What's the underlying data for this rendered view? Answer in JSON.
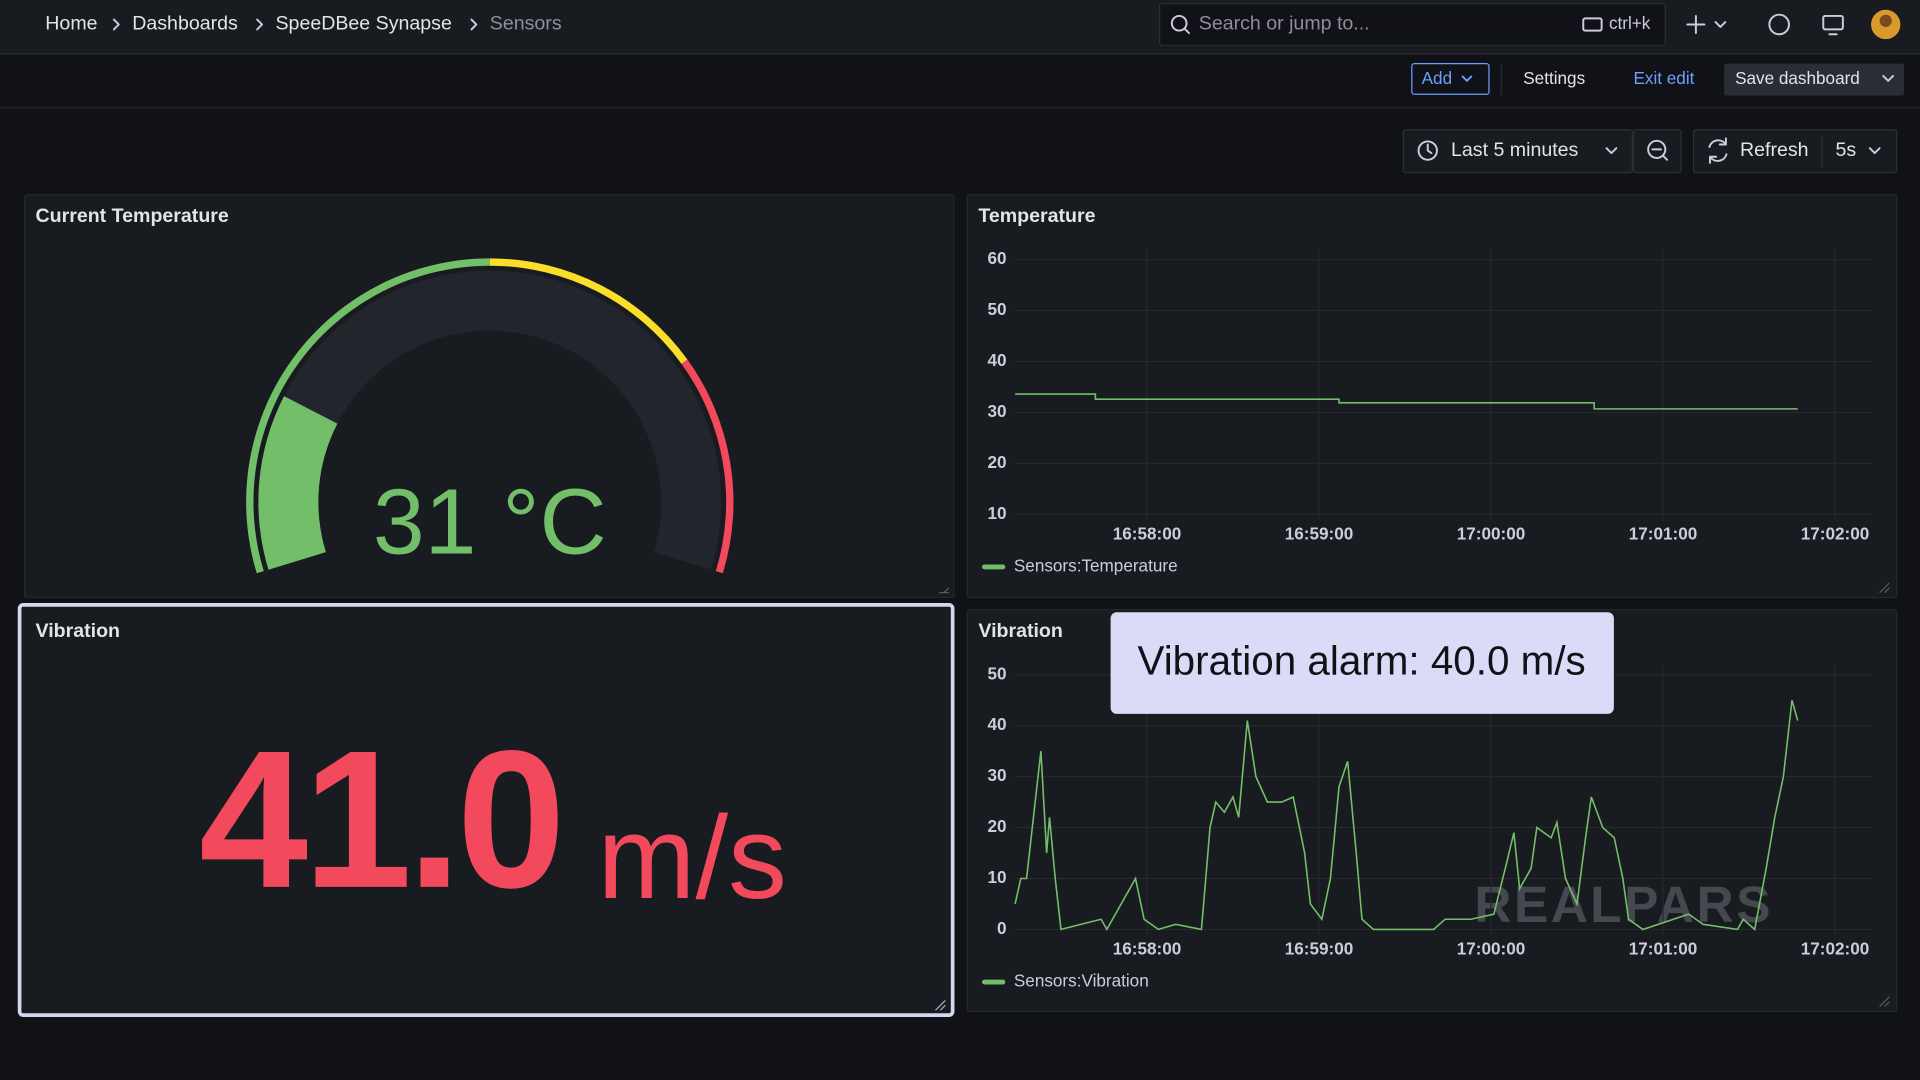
{
  "breadcrumbs": [
    "Home",
    "Dashboards",
    "SpeeDBee Synapse",
    "Sensors"
  ],
  "search": {
    "placeholder": "Search or jump to...",
    "shortcut": "ctrl+k"
  },
  "toolbar": {
    "add": "Add",
    "settings": "Settings",
    "exit_edit": "Exit edit",
    "save": "Save dashboard"
  },
  "time_range": "Last 5 minutes",
  "refresh": "Refresh",
  "refresh_interval": "5s",
  "stat_panel": {
    "title": "Vibration",
    "value": "41.0",
    "unit": "m/s",
    "color": "#f2495c"
  },
  "watermark": "REALPARS",
  "chart_data": [
    {
      "type": "gauge",
      "title": "Current Temperature",
      "value": 31,
      "value_label": "31 °C",
      "min": 0,
      "max": 150,
      "thresholds": [
        {
          "value": 0,
          "color": "#73bf69"
        },
        {
          "value": 75,
          "color": "#fade2a"
        },
        {
          "value": 113,
          "color": "#f2495c"
        }
      ]
    },
    {
      "type": "line",
      "title": "Temperature",
      "x": [
        "16:57:14",
        "16:57:42",
        "16:57:42",
        "16:59:07",
        "16:59:07",
        "17:00:36",
        "17:00:36",
        "17:01:47"
      ],
      "series": [
        {
          "name": "Sensors:Temperature",
          "color": "#73bf69",
          "values": [
            33.6,
            33.6,
            32.6,
            32.6,
            31.9,
            31.9,
            30.7,
            30.7
          ]
        }
      ],
      "xlim": [
        "16:57:14",
        "17:02:13"
      ],
      "xticks": [
        "16:58:00",
        "16:59:00",
        "17:00:00",
        "17:01:00",
        "17:02:00"
      ],
      "ylim": [
        9,
        62
      ],
      "yticks": [
        10,
        20,
        30,
        40,
        50,
        60
      ],
      "grid": true
    },
    {
      "type": "line",
      "title": "Vibration",
      "annotation": "Vibration alarm: 40.0 m/s",
      "x": [
        "16:57:14",
        "16:57:16",
        "16:57:18",
        "16:57:21",
        "16:57:23",
        "16:57:25",
        "16:57:26",
        "16:57:28",
        "16:57:30",
        "16:57:44",
        "16:57:46",
        "16:57:56",
        "16:57:59",
        "16:58:04",
        "16:58:10",
        "16:58:19",
        "16:58:22",
        "16:58:24",
        "16:58:27",
        "16:58:30",
        "16:58:32",
        "16:58:35",
        "16:58:38",
        "16:58:42",
        "16:58:47",
        "16:58:51",
        "16:58:55",
        "16:58:57",
        "16:59:01",
        "16:59:04",
        "16:59:07",
        "16:59:10",
        "16:59:13",
        "16:59:15",
        "16:59:19",
        "16:59:40",
        "16:59:44",
        "16:59:53",
        "17:00:01",
        "17:00:05",
        "17:00:08",
        "17:00:10",
        "17:00:14",
        "17:00:16",
        "17:00:21",
        "17:00:23",
        "17:00:26",
        "17:00:30",
        "17:00:33",
        "17:00:35",
        "17:00:39",
        "17:00:43",
        "17:00:46",
        "17:00:48",
        "17:00:53",
        "17:01:09",
        "17:01:14",
        "17:01:26",
        "17:01:28",
        "17:01:32",
        "17:01:36",
        "17:01:39",
        "17:01:42",
        "17:01:45",
        "17:01:47"
      ],
      "series": [
        {
          "name": "Sensors:Vibration",
          "color": "#73bf69",
          "values": [
            5,
            10,
            10,
            25,
            35,
            15,
            22,
            10,
            0,
            2,
            0,
            10,
            2,
            0,
            1,
            0,
            20,
            25,
            23,
            26,
            22,
            41,
            30,
            25,
            25,
            26,
            15,
            5,
            2,
            10,
            28,
            33,
            15,
            2,
            0,
            0,
            2,
            2,
            3,
            12,
            19,
            8,
            12,
            20,
            18,
            21,
            10,
            5,
            18,
            26,
            20,
            18,
            10,
            2,
            0,
            3,
            1,
            0,
            2,
            0,
            12,
            22,
            30,
            45,
            41
          ]
        }
      ],
      "xlim": [
        "16:57:14",
        "17:02:13"
      ],
      "xticks": [
        "16:58:00",
        "16:59:00",
        "17:00:00",
        "17:01:00",
        "17:02:00"
      ],
      "ylim": [
        -1,
        52
      ],
      "yticks": [
        0,
        10,
        20,
        30,
        40,
        50
      ],
      "grid": true
    }
  ]
}
